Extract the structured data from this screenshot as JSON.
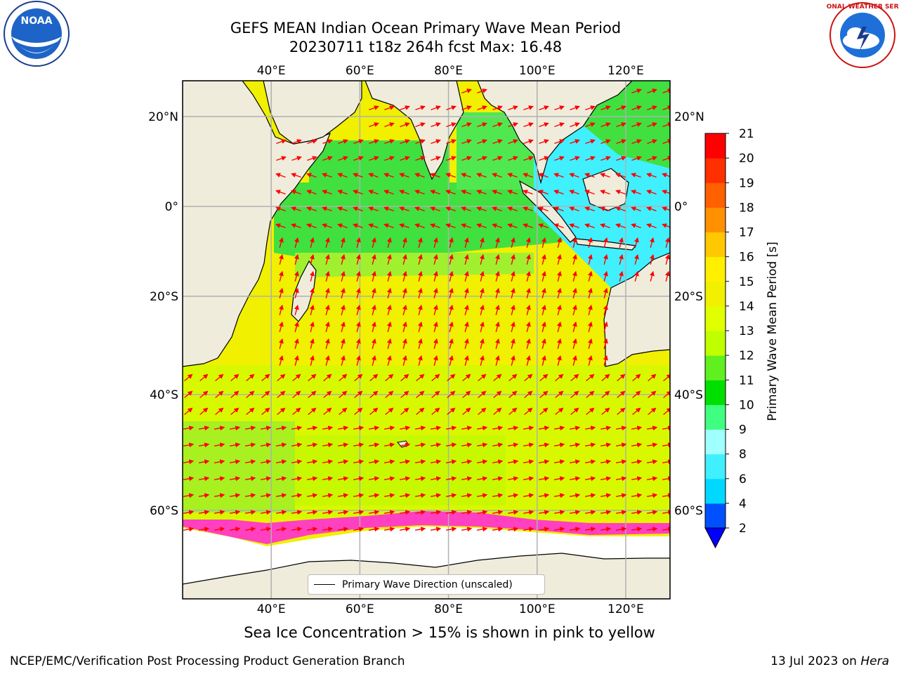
{
  "header": {
    "title": "GEFS MEAN Indian Ocean Primary Wave Mean Period",
    "subtitle": "20230711 t18z 264h fcst   Max: 16.48"
  },
  "logos": {
    "left": "NOAA",
    "left_ring": "NATIONAL OCEANIC AND ATMOSPHERIC ADMINISTRATION · U.S. DEPARTMENT OF COMMERCE",
    "right_ring": "NATIONAL WEATHER SERVICE"
  },
  "map": {
    "lon_ticks": [
      "40°E",
      "60°E",
      "80°E",
      "100°E",
      "120°E"
    ],
    "lat_ticks": [
      "20°N",
      "0°",
      "20°S",
      "40°S",
      "60°S"
    ],
    "lon_values": [
      40,
      60,
      80,
      100,
      120
    ],
    "lat_values": [
      20,
      0,
      -20,
      -40,
      -60
    ],
    "lon_range": [
      20,
      130
    ],
    "lat_range": [
      28,
      -87
    ],
    "legend_label": "Primary Wave Direction (unscaled)",
    "arrow_color": "#ff0000",
    "land_color": "#efecdc",
    "grid": true
  },
  "colorbar": {
    "label": "Primary Wave Mean Period [s]",
    "ticks": [
      "2",
      "4",
      "6",
      "8",
      "9",
      "10",
      "11",
      "12",
      "13",
      "14",
      "15",
      "16",
      "17",
      "18",
      "19",
      "20",
      "21"
    ],
    "colors": [
      "#0050ff",
      "#00d8ff",
      "#40f0ff",
      "#a0ffff",
      "#40ff80",
      "#00e000",
      "#60f020",
      "#c0ff00",
      "#e0ff00",
      "#f0f000",
      "#fff000",
      "#ffc800",
      "#ff9000",
      "#ff6000",
      "#ff3000",
      "#ff0000"
    ],
    "extend_color": "#0000ff"
  },
  "note": "Sea Ice Concentration > 15% is shown in pink to yellow",
  "footer": {
    "left": "NCEP/EMC/Verification Post Processing Product Generation Branch",
    "right_date": "13 Jul 2023 on ",
    "right_machine": "Hera"
  }
}
